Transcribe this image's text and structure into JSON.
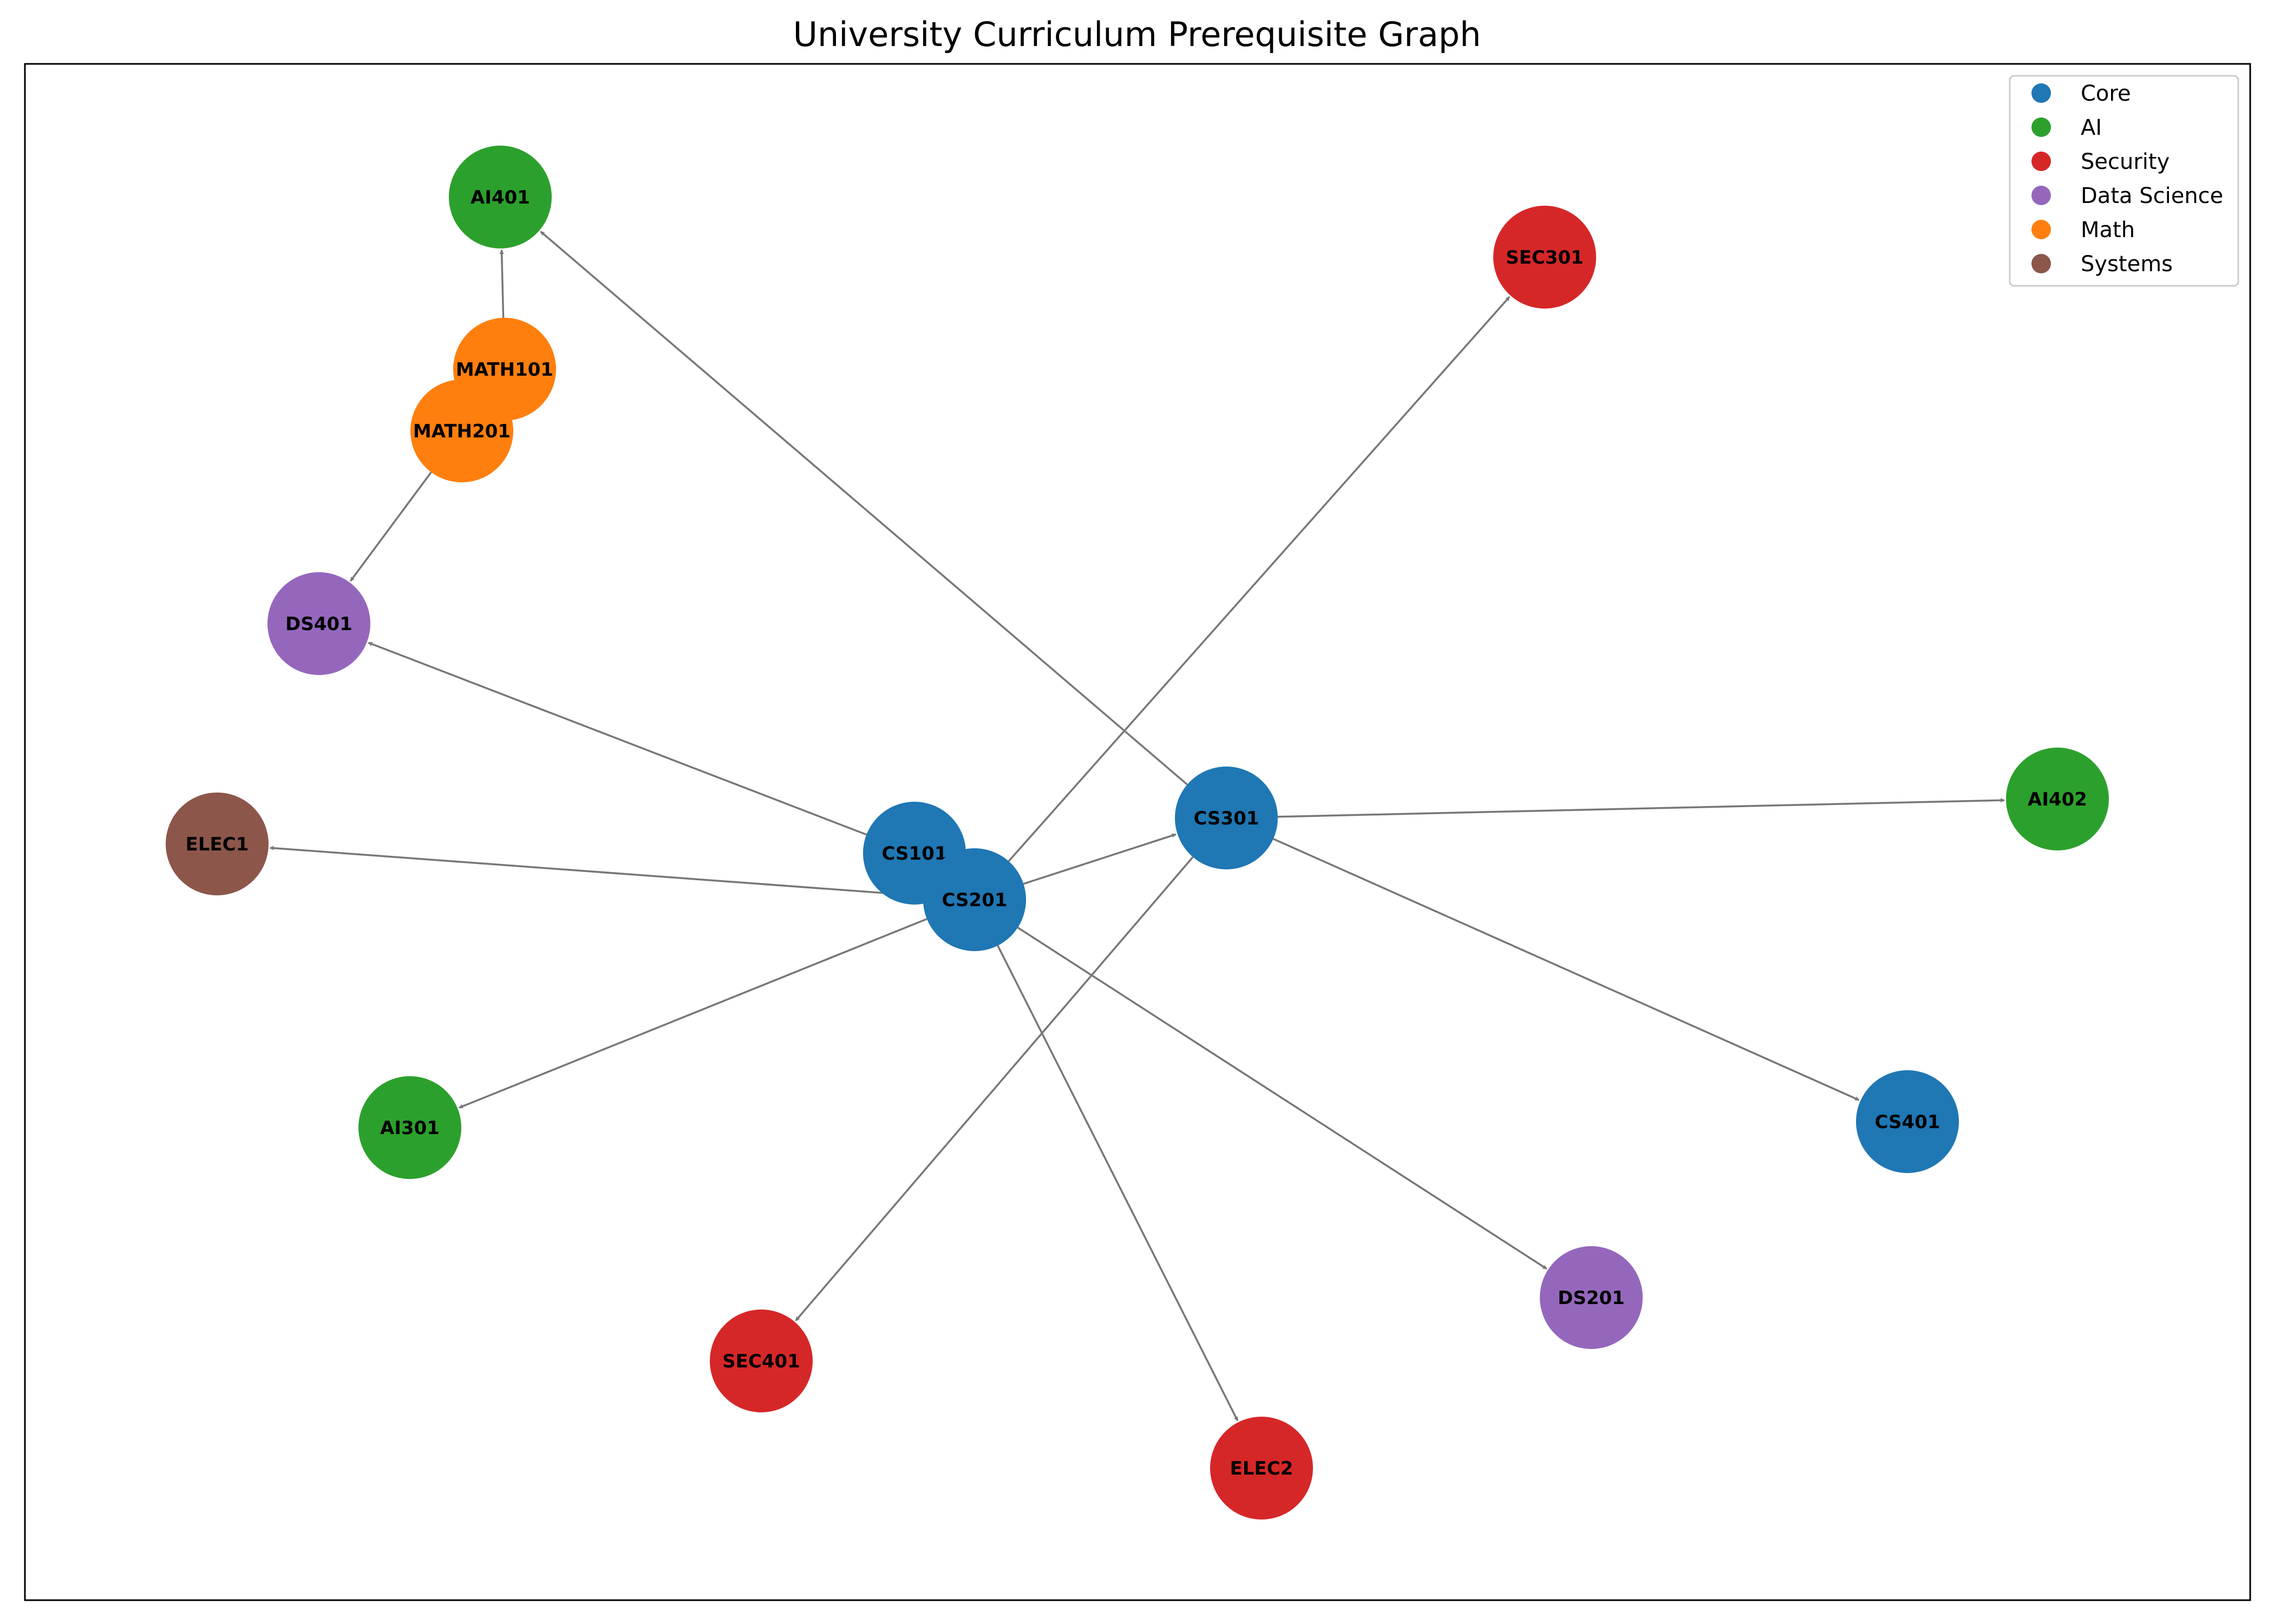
{
  "title": "University Curriculum Prerequisite Graph",
  "legend": [
    {
      "key": "core",
      "label": "Core",
      "color": "#1f77b4"
    },
    {
      "key": "ai",
      "label": "AI",
      "color": "#2ca02c"
    },
    {
      "key": "security",
      "label": "Security",
      "color": "#d62728"
    },
    {
      "key": "ds",
      "label": "Data Science",
      "color": "#9467bd"
    },
    {
      "key": "math",
      "label": "Math",
      "color": "#ff7f0e"
    },
    {
      "key": "systems",
      "label": "Systems",
      "color": "#8c564b"
    }
  ],
  "nodes": [
    {
      "id": "AI401",
      "category": "ai"
    },
    {
      "id": "SEC301",
      "category": "security"
    },
    {
      "id": "MATH101",
      "category": "math"
    },
    {
      "id": "MATH201",
      "category": "math"
    },
    {
      "id": "DS401",
      "category": "ds"
    },
    {
      "id": "ELEC1",
      "category": "systems"
    },
    {
      "id": "CS301",
      "category": "core"
    },
    {
      "id": "AI402",
      "category": "ai"
    },
    {
      "id": "CS101",
      "category": "core"
    },
    {
      "id": "CS201",
      "category": "core"
    },
    {
      "id": "AI301",
      "category": "ai"
    },
    {
      "id": "CS401",
      "category": "core"
    },
    {
      "id": "DS201",
      "category": "ds"
    },
    {
      "id": "SEC401",
      "category": "security"
    },
    {
      "id": "ELEC2",
      "category": "security"
    }
  ],
  "edges": [
    {
      "from": "MATH101",
      "to": "AI401"
    },
    {
      "from": "CS301",
      "to": "AI401"
    },
    {
      "from": "MATH201",
      "to": "DS401"
    },
    {
      "from": "CS101",
      "to": "DS401"
    },
    {
      "from": "CS201",
      "to": "SEC301"
    },
    {
      "from": "CS201",
      "to": "ELEC1"
    },
    {
      "from": "CS201",
      "to": "CS301"
    },
    {
      "from": "CS201",
      "to": "AI301"
    },
    {
      "from": "CS201",
      "to": "DS201"
    },
    {
      "from": "CS201",
      "to": "ELEC2"
    },
    {
      "from": "CS301",
      "to": "AI402"
    },
    {
      "from": "CS301",
      "to": "CS401"
    },
    {
      "from": "CS301",
      "to": "SEC401"
    }
  ]
}
